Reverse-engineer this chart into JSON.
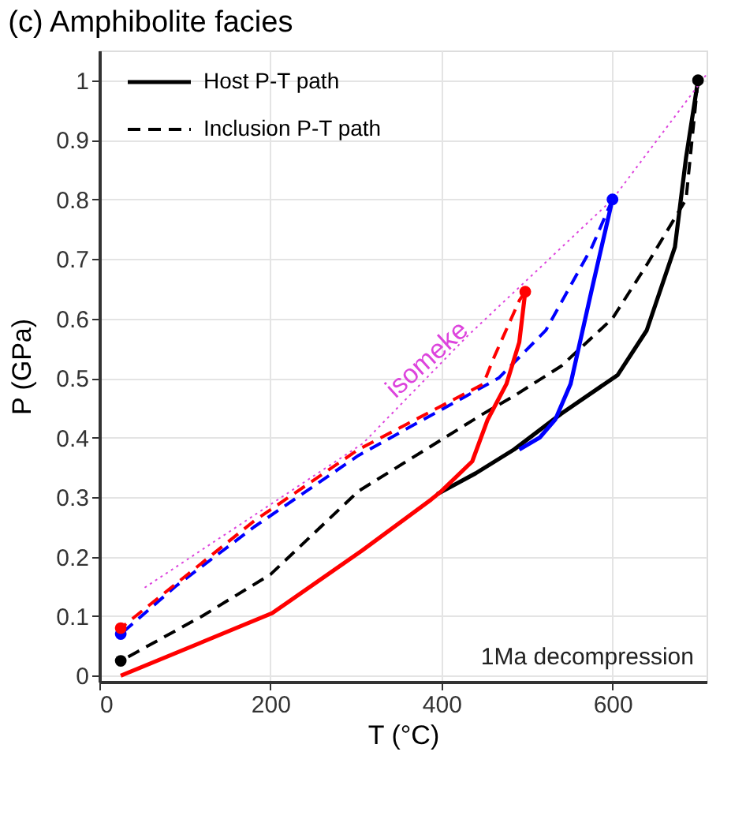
{
  "chart_data": {
    "type": "line",
    "title": "(c) Amphibolite facies",
    "xlabel": "T (°C)",
    "ylabel": "P (GPa)",
    "xlim": [
      0,
      710
    ],
    "ylim": [
      -0.01,
      1.05
    ],
    "xticks": [
      0,
      200,
      400,
      600
    ],
    "yticks": [
      0,
      0.1,
      0.2,
      0.3,
      0.4,
      0.5,
      0.6,
      0.7,
      0.8,
      0.9,
      1
    ],
    "grid": true,
    "legend": "top left",
    "annotations": [
      "isomeke",
      "1Ma decompression"
    ],
    "series": [
      {
        "name": "Host P-T path",
        "color": "#000000",
        "line_style": "solid",
        "x": [
          700,
          686,
          673,
          640,
          606,
          540,
          485,
          440,
          395
        ],
        "values": [
          1,
          0.87,
          0.72,
          0.58,
          0.505,
          0.44,
          0.38,
          0.34,
          0.305
        ]
      },
      {
        "name": "Inclusion P-T path",
        "color": "#000000",
        "line_style": "dashed",
        "x": [
          700,
          686,
          640,
          600,
          540,
          485,
          449,
          303,
          200,
          120,
          25
        ],
        "values": [
          1,
          0.8,
          0.69,
          0.6,
          0.52,
          0.47,
          0.44,
          0.31,
          0.17,
          0.1,
          0.025
        ]
      },
      {
        "color": "#0000ff",
        "line_style": "solid",
        "x": [
          600,
          576,
          551,
          533,
          515,
          491
        ],
        "values": [
          0.8,
          0.65,
          0.49,
          0.43,
          0.4,
          0.38
        ]
      },
      {
        "color": "#0000ff",
        "line_style": "dashed",
        "x": [
          600,
          576,
          522,
          467,
          303,
          181,
          89,
          25
        ],
        "values": [
          0.8,
          0.72,
          0.58,
          0.5,
          0.37,
          0.25,
          0.15,
          0.07
        ]
      },
      {
        "color": "#ff0000",
        "line_style": "solid",
        "x": [
          498,
          491,
          476,
          454,
          436,
          400,
          388,
          307,
          202,
          25
        ],
        "values": [
          0.645,
          0.56,
          0.49,
          0.43,
          0.36,
          0.31,
          0.296,
          0.21,
          0.105,
          0
        ]
      },
      {
        "color": "#ff0000",
        "line_style": "dashed",
        "x": [
          498,
          491,
          460,
          449,
          303,
          181,
          25
        ],
        "values": [
          0.645,
          0.63,
          0.53,
          0.49,
          0.38,
          0.26,
          0.08
        ]
      },
      {
        "color": "#dd44dd",
        "line_style": "dotted",
        "x": [
          53,
          308,
          430,
          600,
          710
        ],
        "values": [
          0.148,
          0.39,
          0.57,
          0.8,
          1.01
        ]
      },
      {
        "type": "scatter",
        "marker": "circle",
        "x": [
          700,
          600,
          498,
          25,
          25,
          25
        ],
        "values": [
          1,
          0.8,
          0.645,
          0.025,
          0.07,
          0.08
        ],
        "colors": [
          "#000000",
          "#0000ff",
          "#ff0000",
          "#000000",
          "#0000ff",
          "#ff0000"
        ]
      }
    ]
  }
}
